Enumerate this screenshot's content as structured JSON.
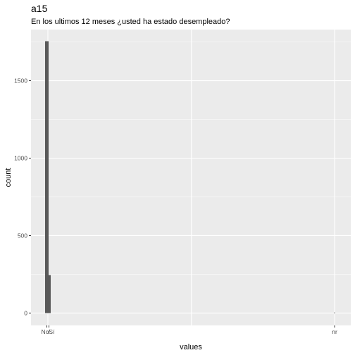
{
  "chart_data": {
    "type": "bar",
    "title": "a15",
    "subtitle": "En los ultimos 12 meses ¿usted ha estado desempleado?",
    "xlabel": "values",
    "ylabel": "count",
    "x_tick_labels": [
      "No",
      "Sí",
      "nr"
    ],
    "x_tick_label_rendered": "No̸Sí",
    "categories": [
      "No",
      "Sí",
      "nr"
    ],
    "values": [
      1755,
      245,
      3
    ],
    "ylim": [
      -80,
      1830
    ],
    "y_ticks": [
      0,
      500,
      1000,
      1500
    ],
    "grid": true,
    "bar_color": "#595959",
    "panel_color": "#ebebeb",
    "grid_color": "#ffffff"
  }
}
